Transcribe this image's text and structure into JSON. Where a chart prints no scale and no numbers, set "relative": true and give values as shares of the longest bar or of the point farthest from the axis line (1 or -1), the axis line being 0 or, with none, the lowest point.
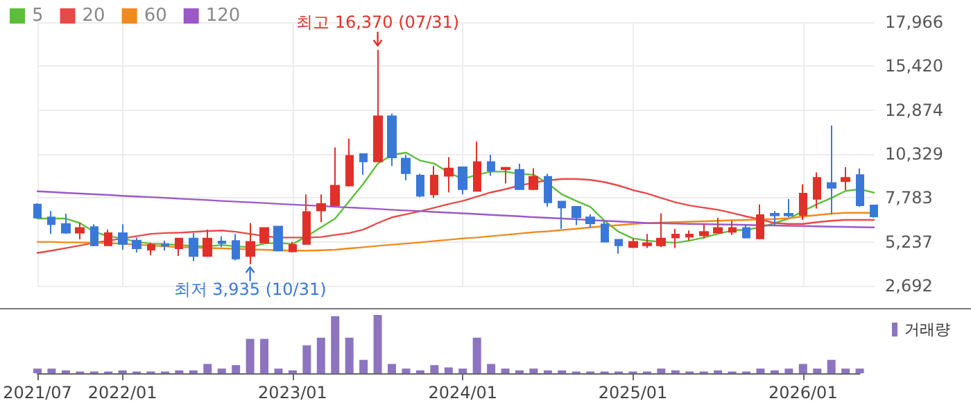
{
  "chart_data": [
    {
      "type": "candlestick",
      "categories": [
        null,
        null,
        null,
        null,
        null,
        null,
        null,
        null,
        null,
        null,
        null,
        null,
        null,
        null,
        null,
        null,
        null,
        null,
        null,
        null,
        null,
        null,
        null,
        null,
        null,
        null,
        null,
        null,
        null,
        null,
        null,
        null,
        null,
        null,
        null,
        null,
        null,
        null,
        null,
        null,
        null,
        null,
        null,
        null,
        null,
        null,
        null,
        null,
        null,
        null,
        null,
        null,
        null,
        null,
        null,
        null,
        null,
        null,
        null,
        null
      ],
      "ohlc": [
        [
          7400,
          7480,
          6590,
          6640
        ],
        [
          6660,
          7020,
          5700,
          6260
        ],
        [
          6280,
          6870,
          5700,
          5770
        ],
        [
          5770,
          6330,
          5390,
          6050
        ],
        [
          6100,
          6260,
          4980,
          5030
        ],
        [
          5030,
          5950,
          5030,
          5750
        ],
        [
          5750,
          6260,
          4780,
          5110
        ],
        [
          5310,
          5490,
          4630,
          4860
        ],
        [
          4780,
          5190,
          4470,
          5060
        ],
        [
          5110,
          5310,
          4730,
          5010
        ],
        [
          4860,
          5440,
          4420,
          5440
        ],
        [
          5440,
          5750,
          4120,
          4420
        ],
        [
          4420,
          5950,
          4370,
          5440
        ],
        [
          5260,
          5570,
          4930,
          5160
        ],
        [
          5290,
          5700,
          4170,
          4270
        ],
        [
          4420,
          6330,
          3935,
          5240
        ],
        [
          5190,
          6050,
          5160,
          6050
        ],
        [
          6130,
          6130,
          4680,
          4730
        ],
        [
          4680,
          5240,
          4630,
          5060
        ],
        [
          5110,
          7990,
          5110,
          6970
        ],
        [
          7050,
          7990,
          6380,
          7430
        ],
        [
          7350,
          10710,
          7350,
          8500
        ],
        [
          8500,
          11220,
          8450,
          10230
        ],
        [
          10330,
          10330,
          9130,
          9900
        ],
        [
          9900,
          16370,
          9900,
          12520
        ],
        [
          12520,
          12670,
          9640,
          10130
        ],
        [
          10070,
          10280,
          8800,
          9210
        ],
        [
          9080,
          9180,
          7830,
          7910
        ],
        [
          7990,
          9640,
          7780,
          9080
        ],
        [
          9060,
          10150,
          8110,
          9490
        ],
        [
          9570,
          9570,
          7990,
          8290
        ],
        [
          8190,
          11040,
          8190,
          9870
        ],
        [
          9870,
          10280,
          9060,
          9360
        ],
        [
          9440,
          9590,
          8620,
          9540
        ],
        [
          9410,
          9770,
          8240,
          8290
        ],
        [
          8290,
          9510,
          8240,
          9010
        ],
        [
          9010,
          9180,
          7270,
          7530
        ],
        [
          7580,
          7580,
          6000,
          7220
        ],
        [
          7270,
          7270,
          6210,
          6660
        ],
        [
          6660,
          6840,
          6080,
          6310
        ],
        [
          6260,
          6460,
          5240,
          5240
        ],
        [
          5360,
          5360,
          4550,
          5030
        ],
        [
          4930,
          5440,
          4880,
          5240
        ],
        [
          5030,
          5700,
          4880,
          5160
        ],
        [
          5030,
          6890,
          4930,
          5440
        ],
        [
          5490,
          6000,
          4880,
          5670
        ],
        [
          5540,
          5900,
          5310,
          5670
        ],
        [
          5620,
          6260,
          5440,
          5820
        ],
        [
          5770,
          6640,
          5770,
          6050
        ],
        [
          5820,
          6460,
          5640,
          6050
        ],
        [
          6050,
          6260,
          5440,
          5490
        ],
        [
          5440,
          7400,
          5390,
          6790
        ],
        [
          6870,
          7020,
          6150,
          6770
        ],
        [
          6870,
          7730,
          6660,
          6770
        ],
        [
          6790,
          8570,
          6510,
          8040
        ],
        [
          7730,
          9260,
          7170,
          8950
        ],
        [
          8650,
          11980,
          6840,
          8370
        ],
        [
          8750,
          9570,
          8240,
          8950
        ],
        [
          9110,
          9490,
          7270,
          7350
        ],
        [
          7350,
          7350,
          6640,
          6710
        ]
      ],
      "series": [
        {
          "name": "5",
          "type": "line",
          "color": "#5cbf3a",
          "values": [
            6590,
            6590,
            6590,
            6330,
            5820,
            5570,
            5440,
            5240,
            5140,
            5110,
            5060,
            5010,
            4980,
            5060,
            4980,
            4930,
            5140,
            5190,
            5110,
            5570,
            6080,
            6590,
            7610,
            8620,
            9770,
            10280,
            10410,
            9950,
            9770,
            9260,
            8880,
            9130,
            9310,
            9310,
            9180,
            9130,
            8620,
            7990,
            7610,
            7270,
            6460,
            5820,
            5440,
            5310,
            5240,
            5190,
            5310,
            5490,
            5700,
            5900,
            5950,
            6080,
            6330,
            6590,
            7020,
            7430,
            7780,
            8190,
            8290,
            8090
          ]
        },
        {
          "name": "20",
          "type": "line",
          "color": "#e84a4a",
          "values": [
            4600,
            4730,
            4880,
            5030,
            5190,
            5310,
            5440,
            5570,
            5700,
            5750,
            5770,
            5820,
            5870,
            5900,
            5820,
            5700,
            5570,
            5490,
            5490,
            5490,
            5520,
            5640,
            5750,
            5950,
            6330,
            6660,
            6840,
            7020,
            7220,
            7430,
            7610,
            7860,
            8110,
            8290,
            8500,
            8670,
            8800,
            8880,
            8880,
            8830,
            8700,
            8500,
            8240,
            8040,
            7780,
            7530,
            7350,
            7220,
            7100,
            6920,
            6710,
            6540,
            6330,
            6280,
            6280,
            6380,
            6460,
            6510,
            6510,
            6510
          ]
        },
        {
          "name": "60",
          "type": "line",
          "color": "#f08a1c",
          "values": [
            5240,
            5240,
            5210,
            5210,
            5190,
            5160,
            5140,
            5080,
            5030,
            4980,
            4930,
            4910,
            4880,
            4860,
            4830,
            4800,
            4780,
            4750,
            4730,
            4730,
            4750,
            4780,
            4860,
            4930,
            5010,
            5080,
            5140,
            5210,
            5290,
            5360,
            5440,
            5490,
            5570,
            5640,
            5720,
            5800,
            5850,
            5930,
            6000,
            6080,
            6150,
            6210,
            6280,
            6330,
            6360,
            6380,
            6410,
            6430,
            6460,
            6490,
            6510,
            6540,
            6560,
            6610,
            6710,
            6790,
            6870,
            6920,
            6920,
            6920
          ]
        },
        {
          "name": "120",
          "type": "line",
          "color": "#9b59c8",
          "values": [
            8170,
            8130,
            8080,
            8040,
            8000,
            7960,
            7910,
            7870,
            7830,
            7790,
            7740,
            7700,
            7660,
            7610,
            7570,
            7530,
            7490,
            7440,
            7400,
            7360,
            7320,
            7270,
            7230,
            7190,
            7150,
            7100,
            7060,
            7020,
            6970,
            6930,
            6890,
            6850,
            6800,
            6760,
            6720,
            6670,
            6630,
            6590,
            6550,
            6500,
            6460,
            6420,
            6380,
            6330,
            6320,
            6300,
            6280,
            6270,
            6250,
            6240,
            6220,
            6200,
            6190,
            6170,
            6160,
            6140,
            6120,
            6110,
            6090,
            6080
          ]
        }
      ],
      "ylim": [
        2692,
        17966
      ],
      "yticks": [
        {
          "value": 2692,
          "label": "2,692"
        },
        {
          "value": 5237,
          "label": "5,237"
        },
        {
          "value": 7783,
          "label": "7,783"
        },
        {
          "value": 10329,
          "label": "10,329"
        },
        {
          "value": 12874,
          "label": "12,874"
        },
        {
          "value": 15420,
          "label": "15,420"
        },
        {
          "value": 17966,
          "label": "17,966"
        }
      ],
      "grid": true,
      "legend": "top left",
      "marker": "none",
      "tick_labels": "y",
      "annotations": [
        "최고 16,370 (07/31)",
        "최저 3,935 (10/31)"
      ]
    },
    {
      "type": "bar",
      "categories": [
        "2021/07",
        null,
        null,
        null,
        null,
        null,
        "2022/01",
        null,
        null,
        null,
        null,
        null,
        null,
        null,
        null,
        null,
        null,
        null,
        "2023/01",
        null,
        null,
        null,
        null,
        null,
        null,
        null,
        null,
        null,
        null,
        null,
        "2024/01",
        null,
        null,
        null,
        null,
        null,
        null,
        null,
        null,
        null,
        null,
        null,
        "2025/01",
        null,
        null,
        null,
        null,
        null,
        null,
        null,
        null,
        null,
        null,
        null,
        "2026/01",
        null,
        null,
        null,
        null
      ],
      "series": [
        {
          "name": "거래량",
          "color": "#8c74c0",
          "values": [
            0.08,
            0.08,
            0.05,
            0.03,
            0.03,
            0.03,
            0.05,
            0.03,
            0.03,
            0.03,
            0.05,
            0.05,
            0.16,
            0.08,
            0.14,
            0.59,
            0.59,
            0.08,
            0.05,
            0.48,
            0.61,
            0.98,
            0.61,
            0.23,
            1,
            0.16,
            0.08,
            0.05,
            0.14,
            0.1,
            0.08,
            0.61,
            0.16,
            0.08,
            0.05,
            0.08,
            0.05,
            0.05,
            0.03,
            0.03,
            0.03,
            0.03,
            0.03,
            0.03,
            0.08,
            0.05,
            0.03,
            0.03,
            0.05,
            0.03,
            0.03,
            0.08,
            0.05,
            0.08,
            0.16,
            0.08,
            0.23,
            0.08,
            0.08
          ]
        }
      ],
      "relative": true,
      "legend": "top right",
      "tick_labels": "x"
    }
  ]
}
